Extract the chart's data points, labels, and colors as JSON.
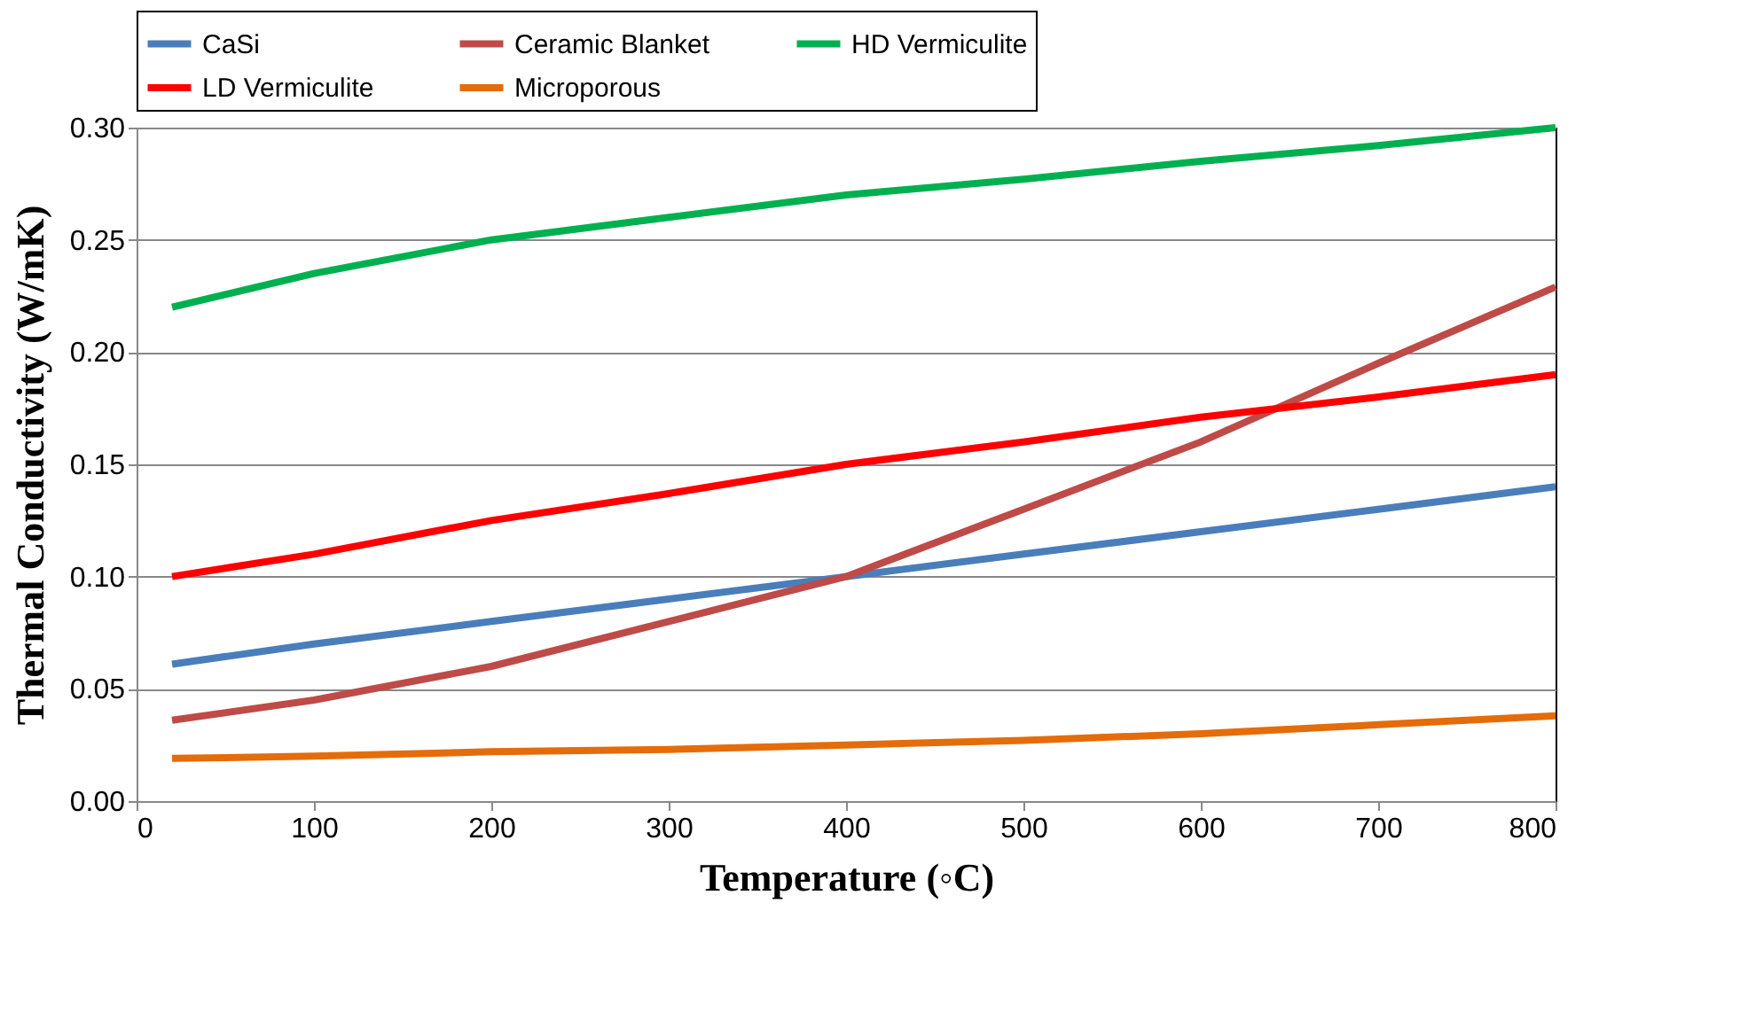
{
  "chart_data": {
    "type": "line",
    "xlabel": "Temperature (◦C)",
    "ylabel": "Thermal Conductivity (W/mK)",
    "x": [
      20,
      100,
      200,
      300,
      400,
      500,
      600,
      700,
      800
    ],
    "series": [
      {
        "name": "CaSi",
        "color": "#4a7ebb",
        "values": [
          0.061,
          0.07,
          0.08,
          0.09,
          0.1,
          0.11,
          0.12,
          0.13,
          0.14
        ]
      },
      {
        "name": "Ceramic Blanket",
        "color": "#be4b48",
        "values": [
          0.036,
          0.045,
          0.06,
          0.08,
          0.1,
          0.13,
          0.16,
          0.195,
          0.229
        ]
      },
      {
        "name": "HD Vermiculite",
        "color": "#00b050",
        "values": [
          0.22,
          0.235,
          0.25,
          0.26,
          0.27,
          0.277,
          0.285,
          0.292,
          0.3
        ]
      },
      {
        "name": "LD Vermiculite",
        "color": "#ff0000",
        "values": [
          0.1,
          0.11,
          0.125,
          0.137,
          0.15,
          0.16,
          0.171,
          0.18,
          0.19
        ]
      },
      {
        "name": "Microporous",
        "color": "#e46c0a",
        "values": [
          0.019,
          0.02,
          0.022,
          0.023,
          0.025,
          0.027,
          0.03,
          0.034,
          0.038
        ]
      }
    ],
    "xlim": [
      0,
      800
    ],
    "xticks": [
      0,
      100,
      200,
      300,
      400,
      500,
      600,
      700,
      800
    ],
    "ylim": [
      0,
      0.3
    ],
    "yticks": [
      {
        "value": 0,
        "label": "0.00"
      },
      {
        "value": 0.05,
        "label": "0.05"
      },
      {
        "value": 0.1,
        "label": "0.10"
      },
      {
        "value": 0.15,
        "label": "0.15"
      },
      {
        "value": 0.2,
        "label": "0.20"
      },
      {
        "value": 0.25,
        "label": "0.25"
      },
      {
        "value": 0.3,
        "label": "0.30"
      }
    ],
    "grid": "y",
    "legend": "top",
    "marker": "none",
    "line_style": "solid"
  }
}
